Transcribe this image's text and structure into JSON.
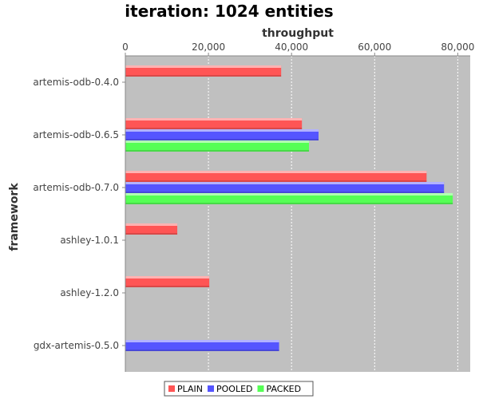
{
  "chart_data": {
    "type": "bar",
    "orientation": "horizontal",
    "title": "iteration: 1024 entities",
    "xlabel": "throughput",
    "ylabel": "framework",
    "xlim": [
      0,
      83000
    ],
    "x_ticks": [
      0,
      20000,
      40000,
      60000,
      80000
    ],
    "x_tick_labels": [
      "0",
      "20,000",
      "40,000",
      "60,000",
      "80,000"
    ],
    "x_axis_position": "top",
    "grid": true,
    "legend_position": "bottom",
    "categories": [
      "artemis-odb-0.4.0",
      "artemis-odb-0.6.5",
      "artemis-odb-0.7.0",
      "ashley-1.0.1",
      "ashley-1.2.0",
      "gdx-artemis-0.5.0"
    ],
    "series": [
      {
        "name": "PLAIN",
        "color": "#ff5555",
        "values": [
          37500,
          42500,
          72500,
          12500,
          20200,
          null
        ]
      },
      {
        "name": "POOLED",
        "color": "#5555ff",
        "values": [
          null,
          46500,
          76700,
          null,
          null,
          37000
        ]
      },
      {
        "name": "PACKED",
        "color": "#55ff55",
        "values": [
          null,
          44200,
          78800,
          null,
          null,
          null
        ]
      }
    ]
  }
}
